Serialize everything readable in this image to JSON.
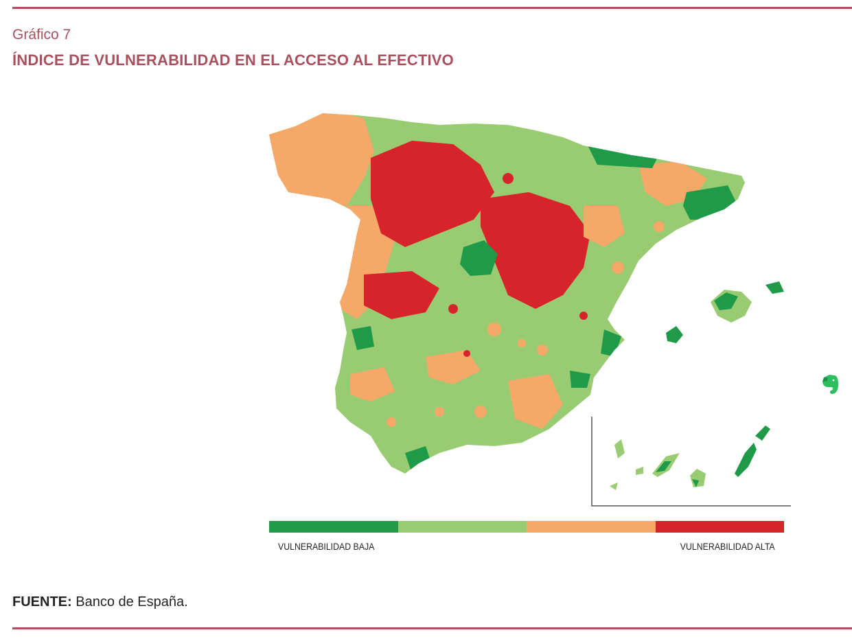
{
  "header": {
    "kicker": "Gráfico 7",
    "title": "ÍNDICE DE VULNERABILIDAD EN EL ACCESO AL EFECTIVO"
  },
  "map": {
    "region": "Spain",
    "inset_region": "Canary Islands",
    "palette": {
      "very_low": "#1e9a49",
      "low": "#99cc72",
      "high": "#f5a867",
      "very_high": "#d7242a"
    }
  },
  "legend": {
    "low_label": "VULNERABILIDAD BAJA",
    "high_label": "VULNERABILIDAD ALTA",
    "colors": [
      "#1e9a49",
      "#99cc72",
      "#f5a867",
      "#d7242a"
    ]
  },
  "source": {
    "label": "FUENTE:",
    "text": " Banco de España."
  },
  "colors": {
    "accent": "#a8505d"
  },
  "icons": {
    "overlay": "evernote-icon"
  }
}
